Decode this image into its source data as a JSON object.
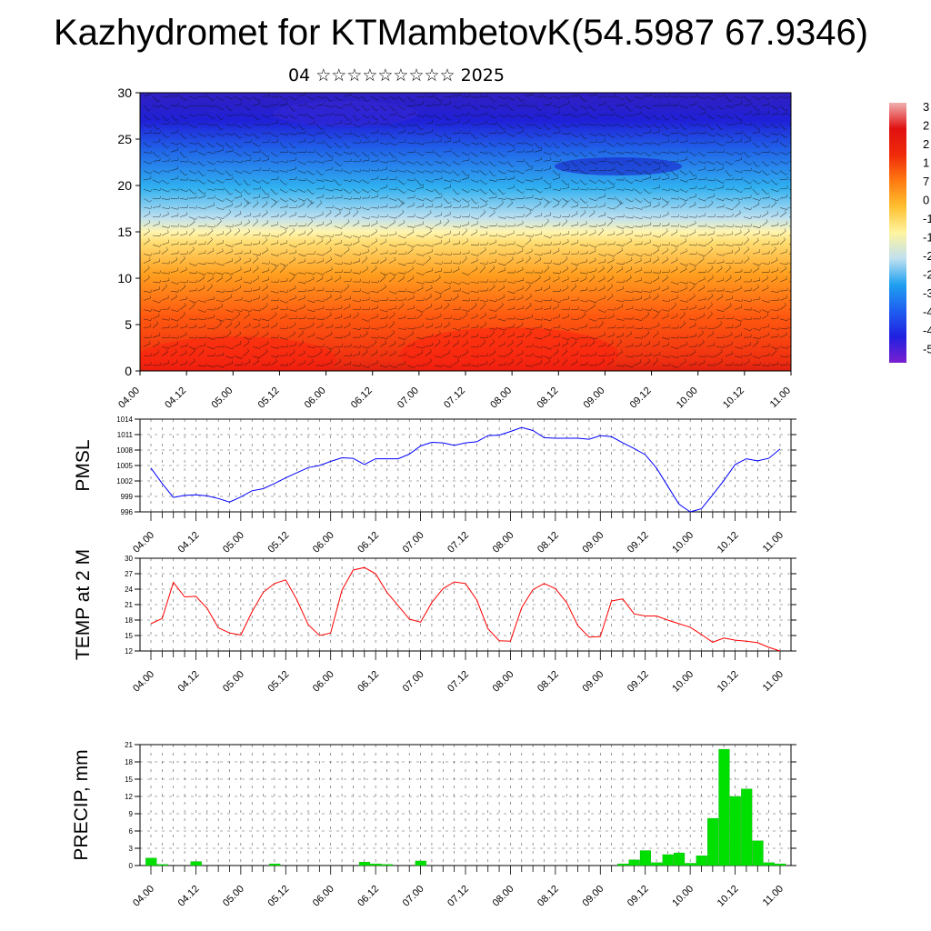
{
  "title": "Kazhydromet for KTMambetovK(54.5987 67.9346)",
  "subtitle": "04 ☆☆☆☆☆☆☆☆☆ 2025",
  "time_ticks": [
    "04.00",
    "04.12",
    "05.00",
    "05.12",
    "06.00",
    "06.12",
    "07.00",
    "07.12",
    "08.00",
    "08.12",
    "09.00",
    "09.12",
    "10.00",
    "10.12",
    "11.00"
  ],
  "chart_data": [
    {
      "type": "heatmap",
      "name": "cross-section",
      "xlabel": "",
      "ylabel": "",
      "ylim": [
        0,
        30
      ],
      "yticks": [
        0,
        5,
        10,
        15,
        20,
        25,
        30
      ],
      "x_categories": [
        "04.00",
        "04.12",
        "05.00",
        "05.12",
        "06.00",
        "06.12",
        "07.00",
        "07.12",
        "08.00",
        "08.12",
        "09.00",
        "09.12",
        "10.00",
        "10.12",
        "11.00"
      ],
      "color_stops": [
        "#7a1fd0",
        "#2020e0",
        "#1e5ef0",
        "#1ea0f0",
        "#bfe0f0",
        "#fff5a0",
        "#ffc030",
        "#ff7a10",
        "#f02a0a",
        "#e01010",
        "#f0b0b0"
      ],
      "colorbar_labels": [
        "3",
        "2",
        "2",
        "1",
        "7",
        "0",
        "-1",
        "-1",
        "-2",
        "-2",
        "-3",
        "-4",
        "-4",
        "-5"
      ],
      "overlay": "wind barbs"
    },
    {
      "type": "line",
      "name": "PMSL",
      "ylabel": "PMSL",
      "ylim": [
        996,
        1014
      ],
      "yticks": [
        996,
        999,
        1002,
        1005,
        1008,
        1011,
        1014
      ],
      "x_step_hours": 3,
      "series": [
        {
          "color": "#0000ff",
          "values": [
            1004.5,
            1001.5,
            998.8,
            999.2,
            999.3,
            999.1,
            998.6,
            997.9,
            998.9,
            1000.1,
            1000.5,
            1001.5,
            1002.6,
            1003.6,
            1004.6,
            1005,
            1005.8,
            1006.5,
            1006.4,
            1005.2,
            1006.3,
            1006.3,
            1006.3,
            1007.2,
            1008.8,
            1009.5,
            1009.4,
            1008.9,
            1009.4,
            1009.6,
            1010.8,
            1010.9,
            1011.6,
            1012.4,
            1011.8,
            1010.4,
            1010.3,
            1010.3,
            1010.3,
            1010.1,
            1010.8,
            1010.6,
            1009.4,
            1008.3,
            1007.1,
            1004.5,
            1001,
            997.5,
            996,
            996.6,
            999.3,
            1002.1,
            1005.2,
            1006.3,
            1005.9,
            1006.4,
            1008.2
          ]
        }
      ]
    },
    {
      "type": "line",
      "name": "TEMP at 2 M",
      "ylabel": "TEMP at 2 M",
      "ylim": [
        12,
        30
      ],
      "yticks": [
        12,
        15,
        18,
        21,
        24,
        27,
        30
      ],
      "x_step_hours": 3,
      "series": [
        {
          "color": "#ff0000",
          "values": [
            17.3,
            18.3,
            25.3,
            22.5,
            22.6,
            20.3,
            16.5,
            15.5,
            15.1,
            19.6,
            23.4,
            25.1,
            25.8,
            21.9,
            17.1,
            15,
            15.5,
            23.8,
            27.7,
            28.2,
            27,
            23.4,
            20.8,
            18.2,
            17.6,
            21.4,
            24.1,
            25.4,
            25.1,
            21.9,
            16.3,
            14,
            13.9,
            20.4,
            23.9,
            25.1,
            24.1,
            21.4,
            16.9,
            14.7,
            14.8,
            21.7,
            22.1,
            19.2,
            18.8,
            18.8,
            18,
            17.3,
            16.6,
            15.2,
            13.7,
            14.5,
            14.1,
            13.9,
            13.6,
            12.7,
            12
          ]
        }
      ]
    },
    {
      "type": "bar",
      "name": "PRECIP, mm",
      "ylabel": "PRECIP, mm",
      "ylim": [
        0,
        21
      ],
      "yticks": [
        0,
        3,
        6,
        9,
        12,
        15,
        18,
        21
      ],
      "x_step_hours": 3,
      "series": [
        {
          "color": "#00e000",
          "values": [
            1.3,
            0.2,
            0,
            0,
            0.7,
            0,
            0,
            0,
            0,
            0,
            0,
            0.3,
            0,
            0,
            0,
            0,
            0,
            0,
            0,
            0.6,
            0.3,
            0.2,
            0,
            0,
            0.8,
            0,
            0,
            0,
            0,
            0,
            0,
            0,
            0,
            0,
            0,
            0,
            0,
            0,
            0,
            0,
            0,
            0,
            0.3,
            1,
            2.6,
            0.5,
            1.9,
            2.2,
            0.4,
            1.7,
            8.2,
            20.2,
            12,
            13.3,
            4.3,
            0.5,
            0.3
          ]
        }
      ]
    }
  ]
}
